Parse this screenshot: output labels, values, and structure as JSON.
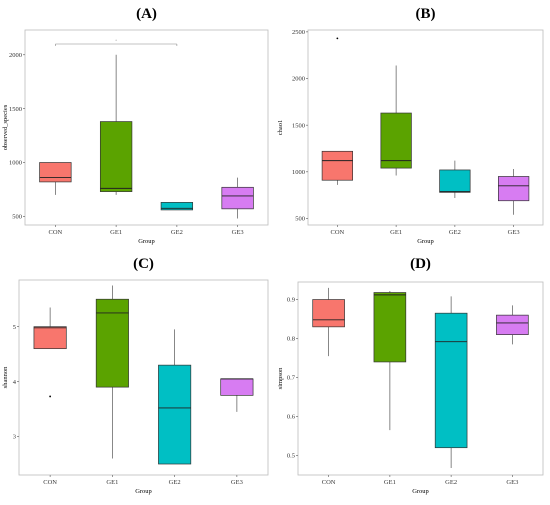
{
  "colors": {
    "CON": "#F8766D",
    "GE1": "#5BA300",
    "GE2": "#00BFC4",
    "GE3": "#D77CF2"
  },
  "chart_data": [
    {
      "type": "box",
      "panel": "(A)",
      "xlabel": "Group",
      "ylabel": "observed_species",
      "ylim": [
        420,
        2230
      ],
      "yticks": [
        500,
        1000,
        1500,
        2000
      ],
      "significance": "·",
      "groups": [
        {
          "name": "CON",
          "min": 700,
          "q1": 820,
          "median": 860,
          "q3": 1000,
          "max": 1000,
          "outliers": []
        },
        {
          "name": "GE1",
          "min": 700,
          "q1": 730,
          "median": 760,
          "q3": 1380,
          "max": 2000,
          "outliers": []
        },
        {
          "name": "GE2",
          "min": 560,
          "q1": 560,
          "median": 575,
          "q3": 630,
          "max": 630,
          "outliers": []
        },
        {
          "name": "GE3",
          "min": 480,
          "q1": 570,
          "median": 690,
          "q3": 770,
          "max": 860,
          "outliers": []
        }
      ]
    },
    {
      "type": "box",
      "panel": "(B)",
      "xlabel": "Group",
      "ylabel": "chao1",
      "ylim": [
        430,
        2520
      ],
      "yticks": [
        500,
        1000,
        1500,
        2000,
        2500
      ],
      "groups": [
        {
          "name": "CON",
          "min": 860,
          "q1": 910,
          "median": 1120,
          "q3": 1220,
          "max": 1220,
          "outliers": [
            2430
          ]
        },
        {
          "name": "GE1",
          "min": 960,
          "q1": 1040,
          "median": 1120,
          "q3": 1630,
          "max": 2140,
          "outliers": []
        },
        {
          "name": "GE2",
          "min": 720,
          "q1": 780,
          "median": 790,
          "q3": 1020,
          "max": 1120,
          "outliers": []
        },
        {
          "name": "GE3",
          "min": 540,
          "q1": 690,
          "median": 850,
          "q3": 950,
          "max": 1030,
          "outliers": []
        }
      ]
    },
    {
      "type": "box",
      "panel": "(C)",
      "xlabel": "Group",
      "ylabel": "shannon",
      "ylim": [
        2.3,
        5.85
      ],
      "yticks": [
        3,
        4,
        5
      ],
      "groups": [
        {
          "name": "CON",
          "min": 4.6,
          "q1": 4.6,
          "median": 4.98,
          "q3": 5.0,
          "max": 5.35,
          "outliers": [
            3.73
          ]
        },
        {
          "name": "GE1",
          "min": 2.6,
          "q1": 3.9,
          "median": 5.25,
          "q3": 5.5,
          "max": 5.75,
          "outliers": []
        },
        {
          "name": "GE2",
          "min": 2.5,
          "q1": 2.5,
          "median": 3.52,
          "q3": 4.3,
          "max": 4.95,
          "outliers": []
        },
        {
          "name": "GE3",
          "min": 3.45,
          "q1": 3.75,
          "median": 4.05,
          "q3": 4.05,
          "max": 4.05,
          "outliers": []
        }
      ]
    },
    {
      "type": "box",
      "panel": "(D)",
      "xlabel": "Group",
      "ylabel": "simpson",
      "ylim": [
        0.45,
        0.945
      ],
      "yticks": [
        0.5,
        0.6,
        0.7,
        0.8,
        0.9
      ],
      "groups": [
        {
          "name": "CON",
          "min": 0.755,
          "q1": 0.83,
          "median": 0.848,
          "q3": 0.9,
          "max": 0.93,
          "outliers": []
        },
        {
          "name": "GE1",
          "min": 0.565,
          "q1": 0.74,
          "median": 0.912,
          "q3": 0.918,
          "max": 0.922,
          "outliers": []
        },
        {
          "name": "GE2",
          "min": 0.468,
          "q1": 0.52,
          "median": 0.792,
          "q3": 0.865,
          "max": 0.908,
          "outliers": []
        },
        {
          "name": "GE3",
          "min": 0.785,
          "q1": 0.81,
          "median": 0.84,
          "q3": 0.86,
          "max": 0.885,
          "outliers": []
        }
      ]
    }
  ]
}
